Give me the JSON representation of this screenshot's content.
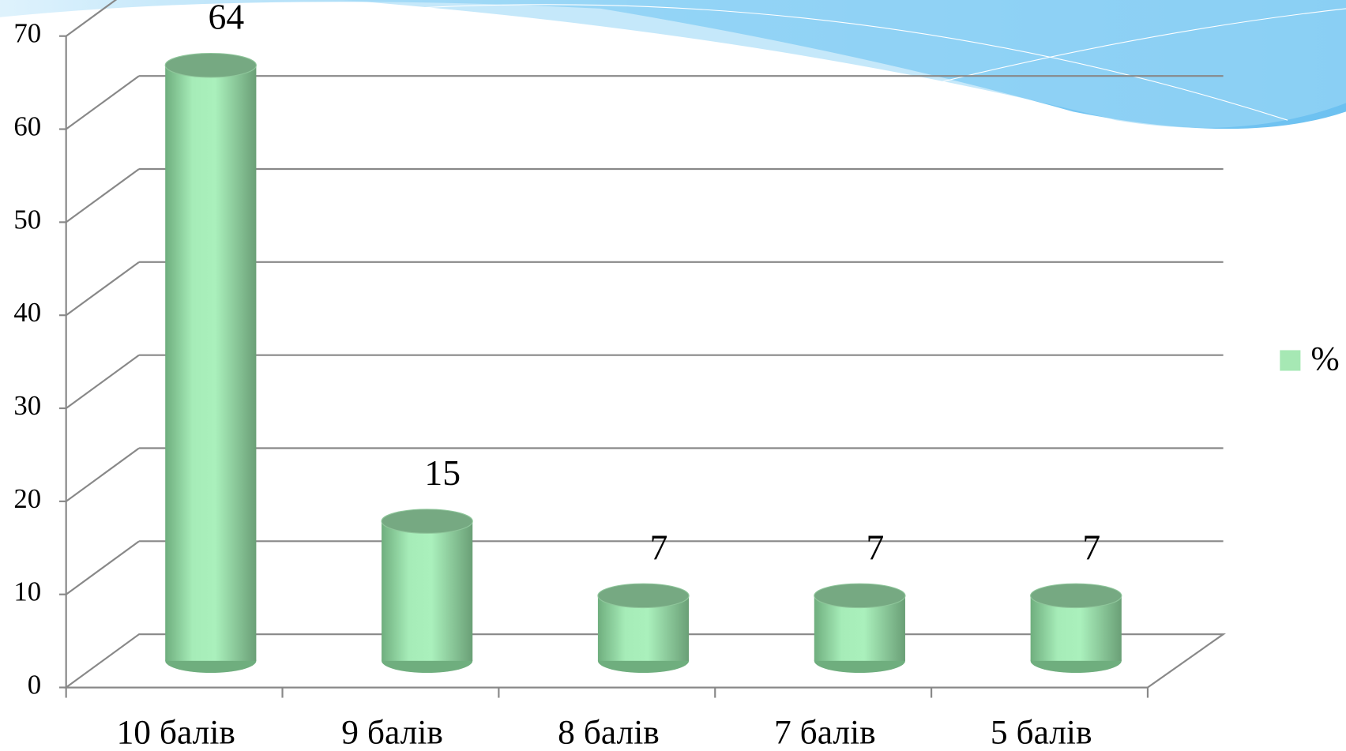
{
  "chart_data": {
    "type": "bar",
    "categories": [
      "10 балів",
      "9 балів",
      "8 балів",
      "7 балів",
      "5 балів"
    ],
    "series": [
      {
        "name": "%",
        "color": "#a6e8b4",
        "values": [
          64,
          15,
          7,
          7,
          7
        ]
      }
    ],
    "ylim": [
      0,
      70
    ],
    "yticks": [
      0,
      10,
      20,
      30,
      40,
      50,
      60,
      70
    ],
    "grid": true,
    "legend": "right"
  }
}
